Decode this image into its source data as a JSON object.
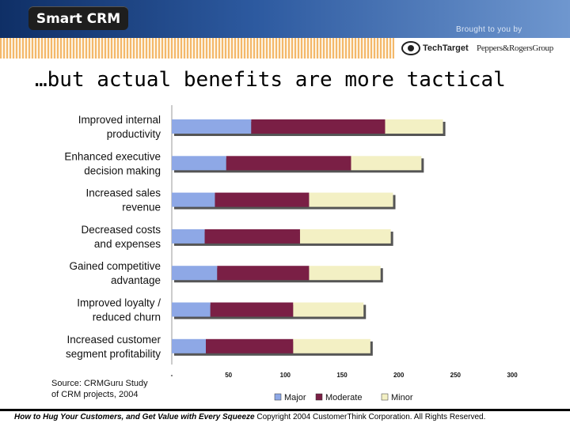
{
  "header": {
    "logo": "Smart CRM",
    "brought_by": "Brought to you by",
    "sponsor_1": "TechTarget",
    "sponsor_2": "Peppers&RogersGroup"
  },
  "slide": {
    "title": "…but actual benefits are more tactical"
  },
  "footer": {
    "headline": "How to Hug Your Customers, and Get Value with Every Squeeze",
    "copyright": "Copyright 2004 CustomerThink Corporation. All Rights Reserved."
  },
  "colors": {
    "major": "#8ea8e6",
    "moderate": "#7a1f45",
    "minor": "#f3f0c4"
  },
  "chart_data": {
    "type": "bar",
    "orientation": "horizontal",
    "stacked": true,
    "categories": [
      [
        "Improved internal",
        "productivity"
      ],
      [
        "Enhanced executive",
        "decision making"
      ],
      [
        "Increased sales",
        "revenue"
      ],
      [
        "Decreased costs",
        "and expenses"
      ],
      [
        "Gained competitive",
        "advantage"
      ],
      [
        "Improved loyalty /",
        "reduced churn"
      ],
      [
        "Increased customer",
        "segment profitability"
      ]
    ],
    "series": [
      {
        "name": "Major",
        "values": [
          70,
          48,
          38,
          29,
          40,
          34,
          30
        ]
      },
      {
        "name": "Moderate",
        "values": [
          118,
          110,
          83,
          84,
          81,
          73,
          77
        ]
      },
      {
        "name": "Minor",
        "values": [
          51,
          62,
          74,
          80,
          63,
          62,
          68
        ]
      }
    ],
    "xlim": [
      0,
      300
    ],
    "xticks": [
      "-",
      "50",
      "100",
      "150",
      "200",
      "250",
      "300"
    ],
    "legend_position": "bottom",
    "source_note": [
      "Source: CRMGuru Study",
      "of CRM projects, 2004"
    ]
  }
}
